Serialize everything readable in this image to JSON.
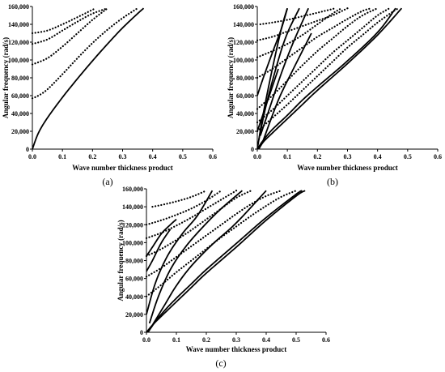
{
  "chart_data": [
    {
      "type": "scatter",
      "panel_label": "(a)",
      "xlabel": "Wave number thickness product",
      "ylabel": "Angular frequency (rad/s)",
      "xlim": [
        0.0,
        0.6
      ],
      "ylim": [
        0,
        160000
      ],
      "x_ticks": [
        "0.0",
        "0.1",
        "0.2",
        "0.3",
        "0.4",
        "0.5",
        "0.6"
      ],
      "y_ticks": [
        "0",
        "20,000",
        "40,000",
        "60,000",
        "80,000",
        "100,000",
        "120,000",
        "140,000",
        "160,000"
      ],
      "series": [
        {
          "style": "solid",
          "x": [
            0.0,
            0.02,
            0.05,
            0.1,
            0.15,
            0.2,
            0.25,
            0.3,
            0.35,
            0.37
          ],
          "y": [
            0,
            18000,
            35000,
            58000,
            79000,
            99000,
            118000,
            136000,
            152000,
            158000
          ]
        },
        {
          "style": "dotted",
          "x": [
            0.0,
            0.02,
            0.05,
            0.1,
            0.15,
            0.2,
            0.25,
            0.3,
            0.35
          ],
          "y": [
            57000,
            60000,
            67000,
            84000,
            102000,
            119000,
            134000,
            147000,
            158000
          ]
        },
        {
          "style": "dotted",
          "x": [
            0.0,
            0.05,
            0.1,
            0.15,
            0.2,
            0.25
          ],
          "y": [
            95000,
            102000,
            115000,
            130000,
            145000,
            158000
          ]
        },
        {
          "style": "dotted",
          "x": [
            0.0,
            0.05,
            0.1,
            0.15,
            0.2,
            0.25
          ],
          "y": [
            118000,
            123000,
            133000,
            143000,
            152000,
            158000
          ]
        },
        {
          "style": "dotted",
          "x": [
            0.0,
            0.05,
            0.1,
            0.15,
            0.21
          ],
          "y": [
            130000,
            133000,
            140000,
            148000,
            158000
          ]
        }
      ]
    },
    {
      "type": "scatter",
      "panel_label": "(b)",
      "xlabel": "Wave number thickness product",
      "ylabel": "Angular frequency (rad/s)",
      "xlim": [
        0.0,
        0.6
      ],
      "ylim": [
        0,
        160000
      ],
      "x_ticks": [
        "0.0",
        "0.1",
        "0.2",
        "0.3",
        "0.4",
        "0.5",
        "0.6"
      ],
      "y_ticks": [
        "0",
        "20,000",
        "40,000",
        "60,000",
        "80,000",
        "100,000",
        "120,000",
        "140,000",
        "160,000"
      ],
      "series": [
        {
          "style": "solid",
          "x": [
            0.0,
            0.02,
            0.05,
            0.1,
            0.15,
            0.2,
            0.3,
            0.4,
            0.46
          ],
          "y": [
            0,
            10000,
            22000,
            38000,
            55000,
            70000,
            99000,
            131000,
            158000
          ]
        },
        {
          "style": "solid",
          "x": [
            0.005,
            0.02,
            0.05,
            0.1,
            0.15,
            0.2,
            0.3,
            0.4,
            0.48
          ],
          "y": [
            0,
            8000,
            18000,
            34000,
            50000,
            66000,
            96000,
            128000,
            158000
          ]
        },
        {
          "style": "solid",
          "x": [
            0.0,
            0.02,
            0.05,
            0.08,
            0.1
          ],
          "y": [
            0,
            40000,
            90000,
            135000,
            158000
          ]
        },
        {
          "style": "solid",
          "x": [
            0.005,
            0.03,
            0.07,
            0.1,
            0.14
          ],
          "y": [
            10000,
            50000,
            100000,
            130000,
            158000
          ]
        },
        {
          "style": "solid",
          "x": [
            0.01,
            0.04,
            0.08,
            0.12,
            0.17
          ],
          "y": [
            15000,
            45000,
            85000,
            120000,
            158000
          ]
        },
        {
          "style": "solid",
          "x": [
            0.02,
            0.07,
            0.12,
            0.18
          ],
          "y": [
            10000,
            55000,
            90000,
            130000
          ]
        },
        {
          "style": "solid",
          "x": [
            0.0,
            0.02,
            0.05,
            0.08,
            0.1
          ],
          "y": [
            60000,
            80000,
            108000,
            135000,
            158000
          ]
        },
        {
          "style": "solid",
          "x": [
            0.0,
            0.02,
            0.04,
            0.07
          ],
          "y": [
            20000,
            40000,
            60000,
            90000
          ]
        },
        {
          "style": "dotted",
          "x": [
            0.0,
            0.05,
            0.1,
            0.15,
            0.2,
            0.25,
            0.3,
            0.35,
            0.4,
            0.45,
            0.47
          ],
          "y": [
            20000,
            35000,
            50000,
            66000,
            82000,
            98000,
            114000,
            128000,
            142000,
            154000,
            158000
          ]
        },
        {
          "style": "dotted",
          "x": [
            0.0,
            0.05,
            0.1,
            0.15,
            0.2,
            0.25,
            0.3,
            0.35,
            0.4,
            0.44
          ],
          "y": [
            30000,
            44000,
            60000,
            76000,
            92000,
            108000,
            122000,
            136000,
            150000,
            158000
          ]
        },
        {
          "style": "dotted",
          "x": [
            0.0,
            0.05,
            0.1,
            0.15,
            0.2,
            0.25,
            0.3,
            0.35,
            0.4
          ],
          "y": [
            45000,
            60000,
            77000,
            94000,
            110000,
            124000,
            138000,
            150000,
            158000
          ]
        },
        {
          "style": "dotted",
          "x": [
            0.0,
            0.05,
            0.1,
            0.15,
            0.2,
            0.25,
            0.3,
            0.35,
            0.38
          ],
          "y": [
            80000,
            90000,
            102000,
            114000,
            126000,
            136000,
            146000,
            155000,
            158000
          ]
        },
        {
          "style": "dotted",
          "x": [
            0.0,
            0.05,
            0.1,
            0.15,
            0.2,
            0.25,
            0.28
          ],
          "y": [
            103000,
            110000,
            118000,
            128000,
            140000,
            152000,
            158000
          ]
        },
        {
          "style": "dotted",
          "x": [
            0.0,
            0.05,
            0.1,
            0.15,
            0.2,
            0.25,
            0.3
          ],
          "y": [
            122000,
            126000,
            132000,
            138000,
            144000,
            150000,
            158000
          ]
        },
        {
          "style": "dotted",
          "x": [
            0.01,
            0.05,
            0.1,
            0.15,
            0.2,
            0.26
          ],
          "y": [
            140000,
            142000,
            145000,
            149000,
            153000,
            158000
          ]
        }
      ]
    },
    {
      "type": "scatter",
      "panel_label": "(c)",
      "xlabel": "Wave number thickness product",
      "ylabel": "Angular frequency (rad/s)",
      "xlim": [
        0.0,
        0.6
      ],
      "ylim": [
        0,
        160000
      ],
      "x_ticks": [
        "0.0",
        "0.1",
        "0.2",
        "0.3",
        "0.4",
        "0.5",
        "0.6"
      ],
      "y_ticks": [
        "0",
        "20,000",
        "40,000",
        "60,000",
        "80,000",
        "100,000",
        "120,000",
        "140,000",
        "160,000"
      ],
      "series": [
        {
          "style": "solid",
          "x": [
            0.0,
            0.02,
            0.05,
            0.1,
            0.15,
            0.2,
            0.3,
            0.4,
            0.5,
            0.53
          ],
          "y": [
            0,
            8000,
            18000,
            34000,
            50000,
            66000,
            95000,
            125000,
            152000,
            158000
          ]
        },
        {
          "style": "solid",
          "x": [
            0.005,
            0.03,
            0.06,
            0.1,
            0.15,
            0.2,
            0.3,
            0.4,
            0.5,
            0.52
          ],
          "y": [
            0,
            12000,
            24000,
            38000,
            54000,
            70000,
            99000,
            128000,
            154000,
            158000
          ]
        },
        {
          "style": "solid",
          "x": [
            0.0,
            0.02,
            0.05,
            0.08,
            0.1
          ],
          "y": [
            85000,
            95000,
            110000,
            120000,
            126000
          ]
        },
        {
          "style": "solid",
          "x": [
            0.0,
            0.02,
            0.05,
            0.08
          ],
          "y": [
            68000,
            80000,
            100000,
            115000
          ]
        },
        {
          "style": "solid",
          "x": [
            0.0,
            0.03,
            0.07,
            0.12,
            0.17,
            0.22
          ],
          "y": [
            20000,
            55000,
            85000,
            110000,
            130000,
            158000
          ]
        },
        {
          "style": "solid",
          "x": [
            0.01,
            0.04,
            0.08,
            0.13,
            0.19,
            0.25,
            0.32
          ],
          "y": [
            10000,
            40000,
            70000,
            95000,
            118000,
            138000,
            158000
          ]
        },
        {
          "style": "solid",
          "x": [
            0.02,
            0.06,
            0.1,
            0.15,
            0.22,
            0.3,
            0.4
          ],
          "y": [
            8000,
            30000,
            52000,
            74000,
            98000,
            122000,
            158000
          ]
        },
        {
          "style": "dotted",
          "x": [
            0.0,
            0.05,
            0.1,
            0.15,
            0.2,
            0.25,
            0.3,
            0.35,
            0.4,
            0.45,
            0.5
          ],
          "y": [
            40000,
            53000,
            67000,
            80000,
            93000,
            106000,
            118000,
            130000,
            141000,
            151000,
            158000
          ]
        },
        {
          "style": "dotted",
          "x": [
            0.0,
            0.05,
            0.1,
            0.15,
            0.2,
            0.25,
            0.3,
            0.35,
            0.4,
            0.45
          ],
          "y": [
            62000,
            72000,
            84000,
            96000,
            108000,
            120000,
            132000,
            143000,
            152000,
            158000
          ]
        },
        {
          "style": "dotted",
          "x": [
            0.0,
            0.05,
            0.1,
            0.15,
            0.2,
            0.25,
            0.3,
            0.35
          ],
          "y": [
            85000,
            93000,
            103000,
            114000,
            126000,
            138000,
            150000,
            158000
          ]
        },
        {
          "style": "dotted",
          "x": [
            0.0,
            0.05,
            0.1,
            0.15,
            0.2,
            0.25,
            0.3
          ],
          "y": [
            105000,
            111000,
            119000,
            128000,
            138000,
            148000,
            158000
          ]
        },
        {
          "style": "dotted",
          "x": [
            0.0,
            0.05,
            0.1,
            0.15,
            0.2,
            0.25
          ],
          "y": [
            120000,
            125000,
            131000,
            138000,
            147000,
            158000
          ]
        },
        {
          "style": "dotted",
          "x": [
            0.02,
            0.05,
            0.1,
            0.15,
            0.2
          ],
          "y": [
            140000,
            142000,
            146000,
            151000,
            158000
          ]
        }
      ]
    }
  ]
}
